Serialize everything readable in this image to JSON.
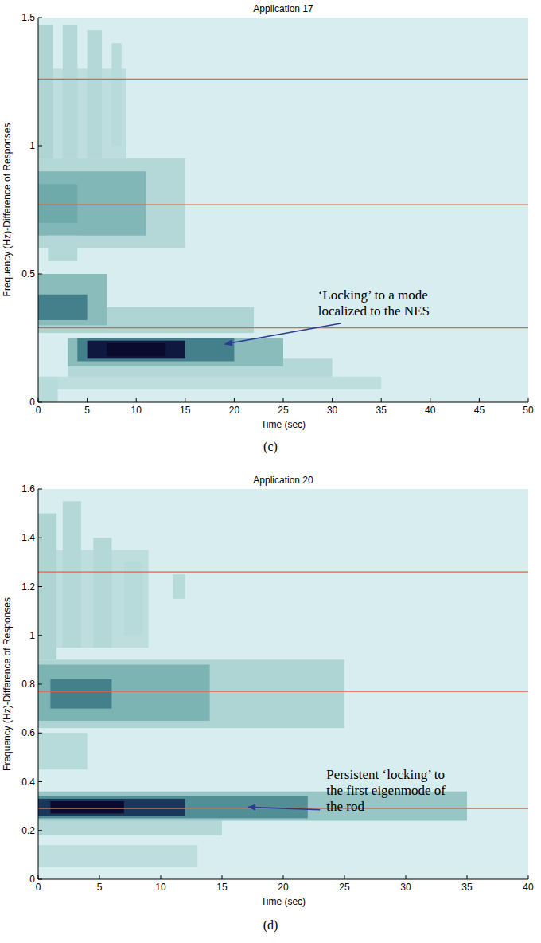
{
  "chart_data": [
    {
      "type": "heatmap",
      "title": "Application 17",
      "x_label": "Time (sec)",
      "y_label": "Frequency (Hz)-Difference of Responses",
      "caption": "(c)",
      "annotation": [
        "‘Locking’ to a mode",
        "localized to the NES"
      ],
      "xlim": [
        0,
        50
      ],
      "ylim": [
        0,
        1.5
      ],
      "zlim": [
        0,
        1
      ],
      "xticks": [
        0,
        5,
        10,
        15,
        20,
        25,
        30,
        35,
        40,
        45,
        50
      ],
      "yticks": [
        0,
        0.5,
        1,
        1.5
      ],
      "grid": false,
      "reference_lines": [
        0.29,
        0.77,
        1.26
      ],
      "cells": [
        {
          "t": [
            0,
            9
          ],
          "f": [
            0.95,
            1.3
          ],
          "value": 0.15
        },
        {
          "t": [
            0,
            1.5
          ],
          "f": [
            0.9,
            1.47
          ],
          "value": 0.22
        },
        {
          "t": [
            2.5,
            4
          ],
          "f": [
            0.95,
            1.47
          ],
          "value": 0.2
        },
        {
          "t": [
            5,
            6.5
          ],
          "f": [
            0.95,
            1.45
          ],
          "value": 0.2
        },
        {
          "t": [
            7.5,
            8.5
          ],
          "f": [
            1.0,
            1.4
          ],
          "value": 0.18
        },
        {
          "t": [
            0,
            35
          ],
          "f": [
            0.05,
            0.1
          ],
          "value": 0.15
        },
        {
          "t": [
            3,
            30
          ],
          "f": [
            0.1,
            0.17
          ],
          "value": 0.2
        },
        {
          "t": [
            0,
            2
          ],
          "f": [
            0.0,
            0.1
          ],
          "value": 0.18
        },
        {
          "t": [
            0,
            22
          ],
          "f": [
            0.27,
            0.37
          ],
          "value": 0.22
        },
        {
          "t": [
            0,
            15
          ],
          "f": [
            0.6,
            0.95
          ],
          "value": 0.2
        },
        {
          "t": [
            0,
            11
          ],
          "f": [
            0.65,
            0.9
          ],
          "value": 0.38
        },
        {
          "t": [
            0,
            4
          ],
          "f": [
            0.7,
            0.85
          ],
          "value": 0.45
        },
        {
          "t": [
            1,
            4
          ],
          "f": [
            0.55,
            0.65
          ],
          "value": 0.2
        },
        {
          "t": [
            0,
            7
          ],
          "f": [
            0.3,
            0.5
          ],
          "value": 0.35
        },
        {
          "t": [
            0,
            5
          ],
          "f": [
            0.32,
            0.42
          ],
          "value": 0.6
        },
        {
          "t": [
            3,
            25
          ],
          "f": [
            0.14,
            0.25
          ],
          "value": 0.35
        },
        {
          "t": [
            4,
            20
          ],
          "f": [
            0.16,
            0.25
          ],
          "value": 0.6
        },
        {
          "t": [
            5,
            15
          ],
          "f": [
            0.17,
            0.24
          ],
          "value": 0.95
        },
        {
          "t": [
            7,
            13
          ],
          "f": [
            0.18,
            0.23
          ],
          "value": 1.0
        }
      ]
    },
    {
      "type": "heatmap",
      "title": "Application 20",
      "x_label": "Time (sec)",
      "y_label": "Frequency (Hz)-Difference of Responses",
      "caption": "(d)",
      "annotation": [
        "Persistent ‘locking’ to",
        "the first eigenmode of",
        "the rod"
      ],
      "xlim": [
        0,
        40
      ],
      "ylim": [
        0,
        1.6
      ],
      "zlim": [
        0,
        1
      ],
      "xticks": [
        0,
        5,
        10,
        15,
        20,
        25,
        30,
        35,
        40
      ],
      "yticks": [
        0,
        0.2,
        0.4,
        0.6,
        0.8,
        1,
        1.2,
        1.4,
        1.6
      ],
      "grid": false,
      "reference_lines": [
        0.29,
        0.77,
        1.26
      ],
      "cells": [
        {
          "t": [
            0,
            9
          ],
          "f": [
            0.95,
            1.35
          ],
          "value": 0.15
        },
        {
          "t": [
            0,
            1.5
          ],
          "f": [
            0.9,
            1.5
          ],
          "value": 0.22
        },
        {
          "t": [
            2,
            3.5
          ],
          "f": [
            0.95,
            1.55
          ],
          "value": 0.2
        },
        {
          "t": [
            4.5,
            6
          ],
          "f": [
            0.95,
            1.4
          ],
          "value": 0.2
        },
        {
          "t": [
            7,
            8.5
          ],
          "f": [
            1.0,
            1.3
          ],
          "value": 0.18
        },
        {
          "t": [
            11,
            12
          ],
          "f": [
            1.15,
            1.25
          ],
          "value": 0.18
        },
        {
          "t": [
            0,
            25
          ],
          "f": [
            0.62,
            0.9
          ],
          "value": 0.22
        },
        {
          "t": [
            0,
            14
          ],
          "f": [
            0.65,
            0.88
          ],
          "value": 0.4
        },
        {
          "t": [
            1,
            6
          ],
          "f": [
            0.7,
            0.82
          ],
          "value": 0.6
        },
        {
          "t": [
            0,
            4
          ],
          "f": [
            0.45,
            0.6
          ],
          "value": 0.18
        },
        {
          "t": [
            0,
            13
          ],
          "f": [
            0.05,
            0.14
          ],
          "value": 0.15
        },
        {
          "t": [
            0,
            15
          ],
          "f": [
            0.18,
            0.26
          ],
          "value": 0.2
        },
        {
          "t": [
            0,
            35
          ],
          "f": [
            0.24,
            0.36
          ],
          "value": 0.3
        },
        {
          "t": [
            0,
            22
          ],
          "f": [
            0.25,
            0.34
          ],
          "value": 0.55
        },
        {
          "t": [
            0,
            12
          ],
          "f": [
            0.26,
            0.33
          ],
          "value": 0.85
        },
        {
          "t": [
            1,
            7
          ],
          "f": [
            0.27,
            0.32
          ],
          "value": 1.0
        }
      ]
    }
  ]
}
